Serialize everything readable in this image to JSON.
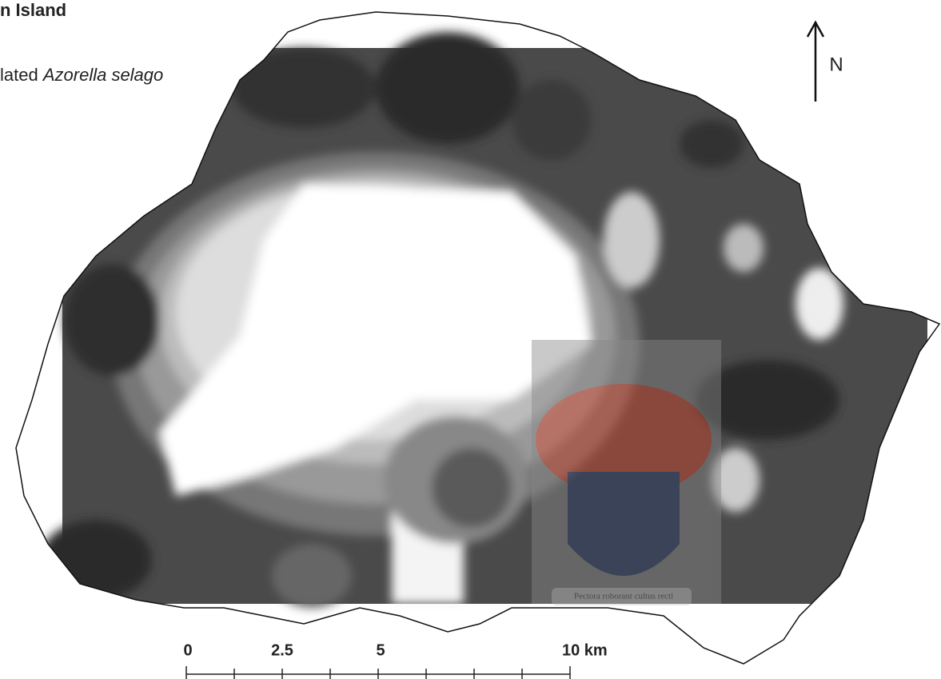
{
  "title": "n Island",
  "subtitle": {
    "plain": "lated",
    "italic": "Azorella selago"
  },
  "north_arrow": {
    "label": "N"
  },
  "scale_bar": {
    "labels": [
      "0",
      "2.5",
      "5",
      "10 km"
    ]
  },
  "watermark": {
    "motto": "Pectora roborant cultus recti"
  }
}
